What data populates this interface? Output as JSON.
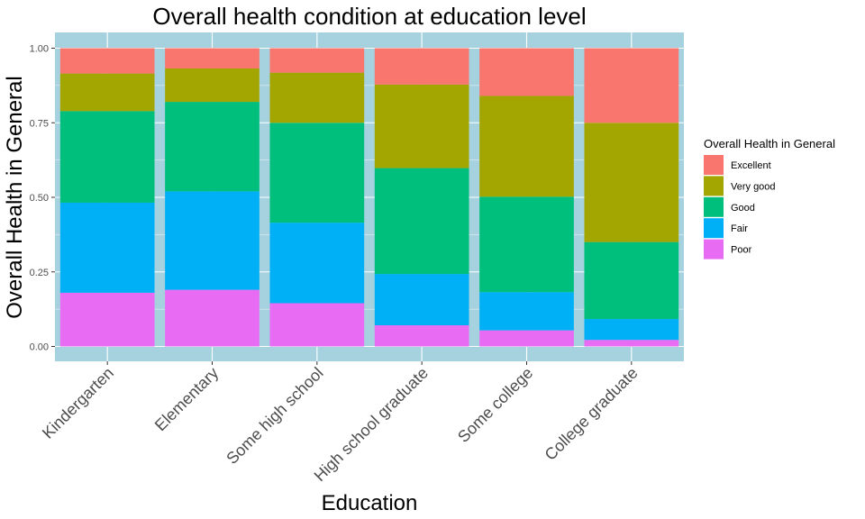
{
  "chart_data": {
    "type": "bar",
    "stacked": true,
    "title": "Overall health condition at education level",
    "xlabel": "Education",
    "ylabel": "Overall Health in General",
    "ylim": [
      0,
      1
    ],
    "yticks": [
      "0.00",
      "0.25",
      "0.50",
      "0.75",
      "1.00"
    ],
    "ytick_values": [
      0,
      0.25,
      0.5,
      0.75,
      1.0
    ],
    "categories": [
      "Kindergarten",
      "Elementary",
      "Some high school",
      "High school graduate",
      "Some college",
      "College graduate"
    ],
    "legend_title": "Overall Health in General",
    "legend_position": "right",
    "panel_background": "#a6d2e0",
    "grid": true,
    "series": [
      {
        "name": "Excellent",
        "color": "#f8766d",
        "values": [
          0.085,
          0.068,
          0.082,
          0.122,
          0.16,
          0.25
        ]
      },
      {
        "name": "Very good",
        "color": "#a3a500",
        "values": [
          0.126,
          0.112,
          0.168,
          0.28,
          0.338,
          0.4
        ]
      },
      {
        "name": "Good",
        "color": "#00bf7d",
        "values": [
          0.307,
          0.3,
          0.335,
          0.355,
          0.32,
          0.258
        ]
      },
      {
        "name": "Fair",
        "color": "#00b0f6",
        "values": [
          0.302,
          0.33,
          0.27,
          0.172,
          0.128,
          0.07
        ]
      },
      {
        "name": "Poor",
        "color": "#e76bf3",
        "values": [
          0.18,
          0.19,
          0.145,
          0.071,
          0.054,
          0.022
        ]
      }
    ]
  }
}
